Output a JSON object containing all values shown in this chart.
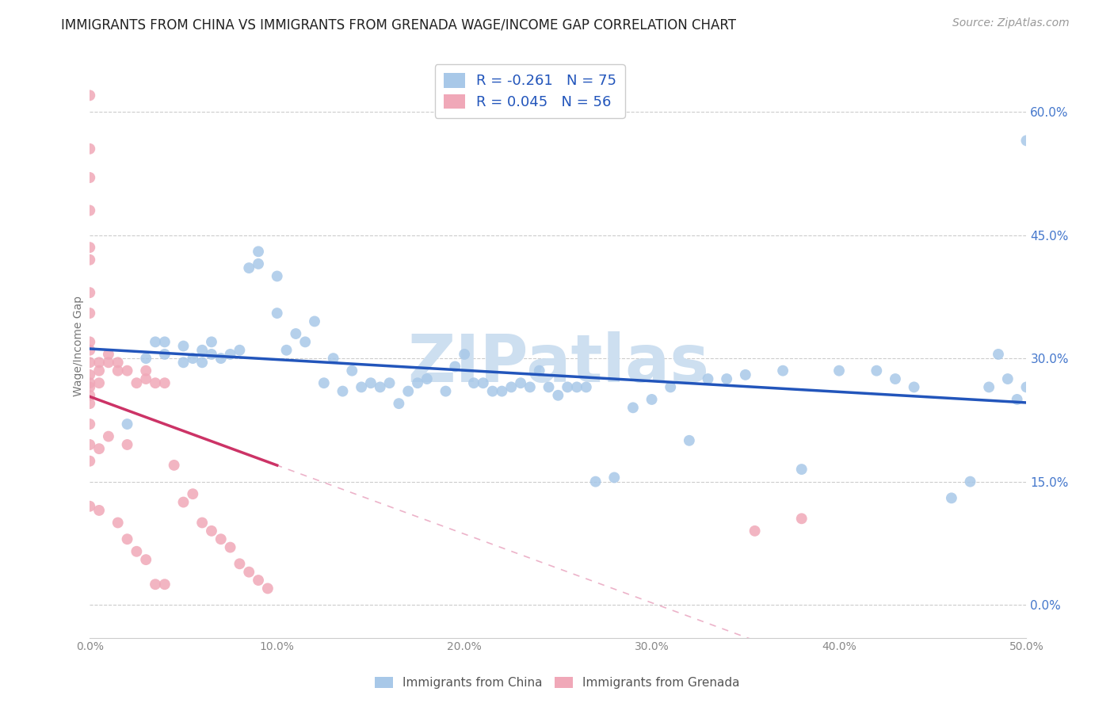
{
  "title": "IMMIGRANTS FROM CHINA VS IMMIGRANTS FROM GRENADA WAGE/INCOME GAP CORRELATION CHART",
  "source": "Source: ZipAtlas.com",
  "ylabel": "Wage/Income Gap",
  "right_ytick_vals": [
    0.0,
    0.15,
    0.3,
    0.45,
    0.6
  ],
  "xlim": [
    0.0,
    0.5
  ],
  "ylim": [
    -0.04,
    0.67
  ],
  "color_china": "#a8c8e8",
  "color_grenada": "#f0a8b8",
  "color_line_china": "#2255bb",
  "color_line_grenada": "#cc3366",
  "watermark_color": "#cddff0",
  "watermark": "ZIPatlas",
  "china_x": [
    0.02,
    0.03,
    0.035,
    0.04,
    0.04,
    0.05,
    0.05,
    0.055,
    0.06,
    0.06,
    0.065,
    0.065,
    0.07,
    0.075,
    0.08,
    0.085,
    0.09,
    0.09,
    0.1,
    0.1,
    0.105,
    0.11,
    0.115,
    0.12,
    0.125,
    0.13,
    0.135,
    0.14,
    0.145,
    0.15,
    0.155,
    0.16,
    0.165,
    0.17,
    0.175,
    0.18,
    0.19,
    0.195,
    0.2,
    0.205,
    0.21,
    0.215,
    0.22,
    0.225,
    0.23,
    0.235,
    0.24,
    0.245,
    0.25,
    0.255,
    0.26,
    0.265,
    0.27,
    0.28,
    0.29,
    0.3,
    0.31,
    0.32,
    0.33,
    0.34,
    0.35,
    0.37,
    0.38,
    0.4,
    0.42,
    0.43,
    0.44,
    0.46,
    0.47,
    0.48,
    0.485,
    0.49,
    0.495,
    0.5,
    0.5
  ],
  "china_y": [
    0.22,
    0.3,
    0.32,
    0.305,
    0.32,
    0.295,
    0.315,
    0.3,
    0.31,
    0.295,
    0.32,
    0.305,
    0.3,
    0.305,
    0.31,
    0.41,
    0.43,
    0.415,
    0.355,
    0.4,
    0.31,
    0.33,
    0.32,
    0.345,
    0.27,
    0.3,
    0.26,
    0.285,
    0.265,
    0.27,
    0.265,
    0.27,
    0.245,
    0.26,
    0.27,
    0.275,
    0.26,
    0.29,
    0.305,
    0.27,
    0.27,
    0.26,
    0.26,
    0.265,
    0.27,
    0.265,
    0.285,
    0.265,
    0.255,
    0.265,
    0.265,
    0.265,
    0.15,
    0.155,
    0.24,
    0.25,
    0.265,
    0.2,
    0.275,
    0.275,
    0.28,
    0.285,
    0.165,
    0.285,
    0.285,
    0.275,
    0.265,
    0.13,
    0.15,
    0.265,
    0.305,
    0.275,
    0.25,
    0.565,
    0.265
  ],
  "grenada_x": [
    0.0,
    0.0,
    0.0,
    0.0,
    0.0,
    0.0,
    0.0,
    0.0,
    0.0,
    0.0,
    0.0,
    0.0,
    0.0,
    0.0,
    0.0,
    0.0,
    0.0,
    0.0,
    0.0,
    0.0,
    0.005,
    0.005,
    0.005,
    0.005,
    0.005,
    0.01,
    0.01,
    0.01,
    0.015,
    0.015,
    0.015,
    0.02,
    0.02,
    0.02,
    0.025,
    0.025,
    0.03,
    0.03,
    0.03,
    0.035,
    0.035,
    0.04,
    0.04,
    0.045,
    0.05,
    0.055,
    0.06,
    0.065,
    0.07,
    0.075,
    0.08,
    0.085,
    0.09,
    0.095,
    0.355,
    0.38
  ],
  "grenada_y": [
    0.62,
    0.555,
    0.52,
    0.48,
    0.435,
    0.42,
    0.38,
    0.355,
    0.32,
    0.31,
    0.295,
    0.28,
    0.27,
    0.265,
    0.255,
    0.245,
    0.22,
    0.195,
    0.175,
    0.12,
    0.295,
    0.285,
    0.27,
    0.19,
    0.115,
    0.305,
    0.295,
    0.205,
    0.295,
    0.285,
    0.1,
    0.285,
    0.195,
    0.08,
    0.27,
    0.065,
    0.285,
    0.275,
    0.055,
    0.27,
    0.025,
    0.27,
    0.025,
    0.17,
    0.125,
    0.135,
    0.1,
    0.09,
    0.08,
    0.07,
    0.05,
    0.04,
    0.03,
    0.02,
    0.09,
    0.105
  ]
}
